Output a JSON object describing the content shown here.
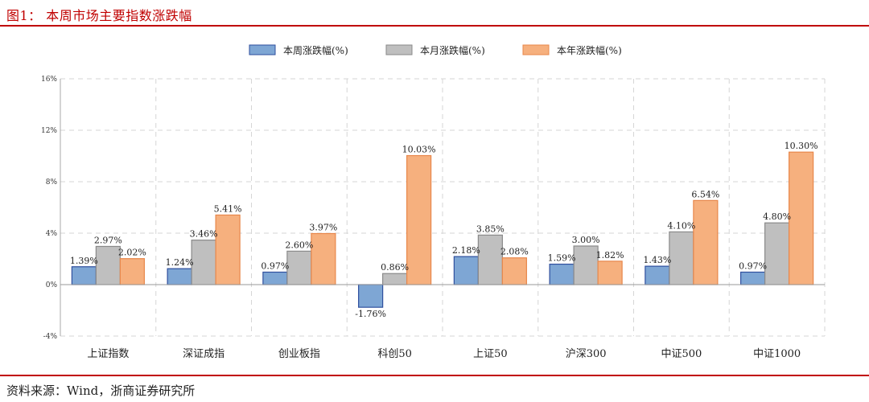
{
  "figure": {
    "title": "图1：  本周市场主要指数涨跌幅",
    "source": "资料来源：Wind，浙商证券研究所"
  },
  "colors": {
    "accent_red": "#c00000",
    "week": "#7ea6d4",
    "week_edge": "#2f4f9e",
    "month": "#bfbfbf",
    "month_edge": "#8a8a8a",
    "year": "#f6b07e",
    "year_edge": "#e8874b"
  },
  "chart_data": {
    "type": "bar",
    "categories": [
      "上证指数",
      "深证成指",
      "创业板指",
      "科创50",
      "上证50",
      "沪深300",
      "中证500",
      "中证1000"
    ],
    "series": [
      {
        "name": "本周涨跌幅(%)",
        "values": [
          1.39,
          1.24,
          0.97,
          -1.76,
          2.18,
          1.59,
          1.43,
          0.97
        ],
        "labels": [
          "1.39%",
          "1.24%",
          "0.97%",
          "-1.76%",
          "2.18%",
          "1.59%",
          "1.43%",
          "0.97%"
        ]
      },
      {
        "name": "本月涨跌幅(%)",
        "values": [
          2.97,
          3.46,
          2.6,
          0.86,
          3.85,
          3.0,
          4.1,
          4.8
        ],
        "labels": [
          "2.97%",
          "3.46%",
          "2.60%",
          "0.86%",
          "3.85%",
          "3.00%",
          "4.10%",
          "4.80%"
        ]
      },
      {
        "name": "本年涨跌幅(%)",
        "values": [
          2.02,
          5.41,
          3.97,
          10.03,
          2.08,
          1.82,
          6.54,
          10.3
        ],
        "labels": [
          "2.02%",
          "5.41%",
          "3.97%",
          "10.03%",
          "2.08%",
          "1.82%",
          "6.54%",
          "10.30%"
        ]
      }
    ],
    "ylim": [
      -4,
      16
    ],
    "yticks": [
      -4,
      0,
      4,
      8,
      12,
      16
    ],
    "ytick_labels": [
      "-4%",
      "0%",
      "4%",
      "8%",
      "12%",
      "16%"
    ],
    "grid": true,
    "legend": "top-center"
  }
}
